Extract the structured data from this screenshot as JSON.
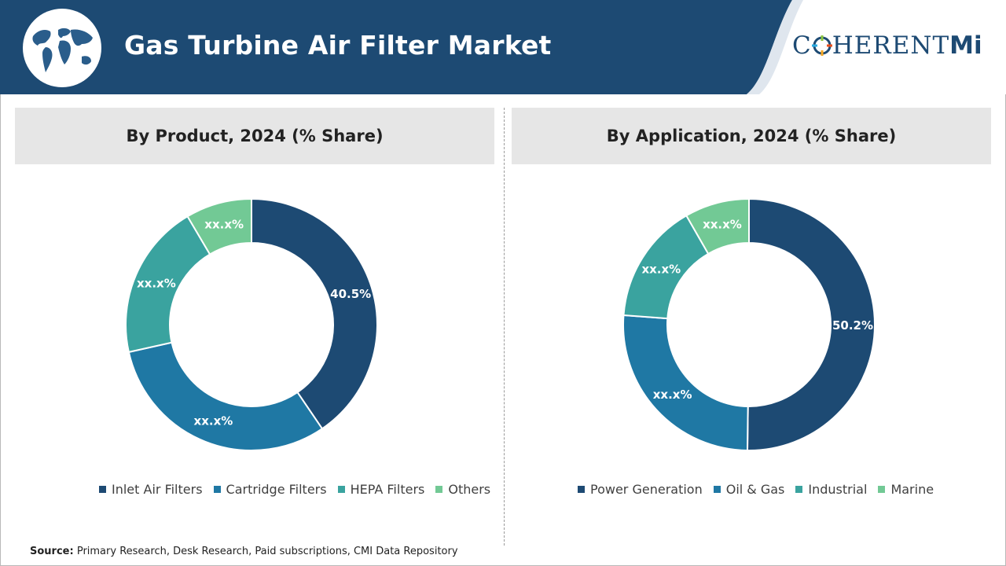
{
  "header": {
    "title": "Gas Turbine Air Filter Market",
    "brand_word": "COHERENT",
    "brand_mi": "MI",
    "colors": {
      "header_bg": "#1d4a73",
      "brand": "#1d4a73"
    }
  },
  "icons": {
    "globe": "world-map-globe-icon",
    "brand_mark": "crosshair-o-icon"
  },
  "chart_data": [
    {
      "type": "pie",
      "title": "By Product, 2024 (% Share)",
      "categories": [
        "Inlet Air Filters",
        "Cartridge Filters",
        "HEPA Filters",
        "Others"
      ],
      "values": [
        40.5,
        31.0,
        20.0,
        8.5
      ],
      "labels": [
        "40.5%",
        "xx.x%",
        "xx.x%",
        "xx.x%"
      ],
      "colors": [
        "#1d4a73",
        "#1f78a4",
        "#3aa39f",
        "#72c995"
      ],
      "legend": "bottom",
      "donut": true
    },
    {
      "type": "pie",
      "title": "By Application, 2024 (% Share)",
      "categories": [
        "Power Generation",
        "Oil & Gas",
        "Industrial",
        "Marine"
      ],
      "values": [
        50.2,
        26.0,
        15.5,
        8.3
      ],
      "labels": [
        "50.2%",
        "xx.x%",
        "xx.x%",
        "xx.x%"
      ],
      "colors": [
        "#1d4a73",
        "#1f78a4",
        "#3aa39f",
        "#72c995"
      ],
      "legend": "bottom",
      "donut": true
    }
  ],
  "source": {
    "label": "Source:",
    "text": "Primary Research, Desk Research, Paid subscriptions, CMI Data Repository"
  }
}
